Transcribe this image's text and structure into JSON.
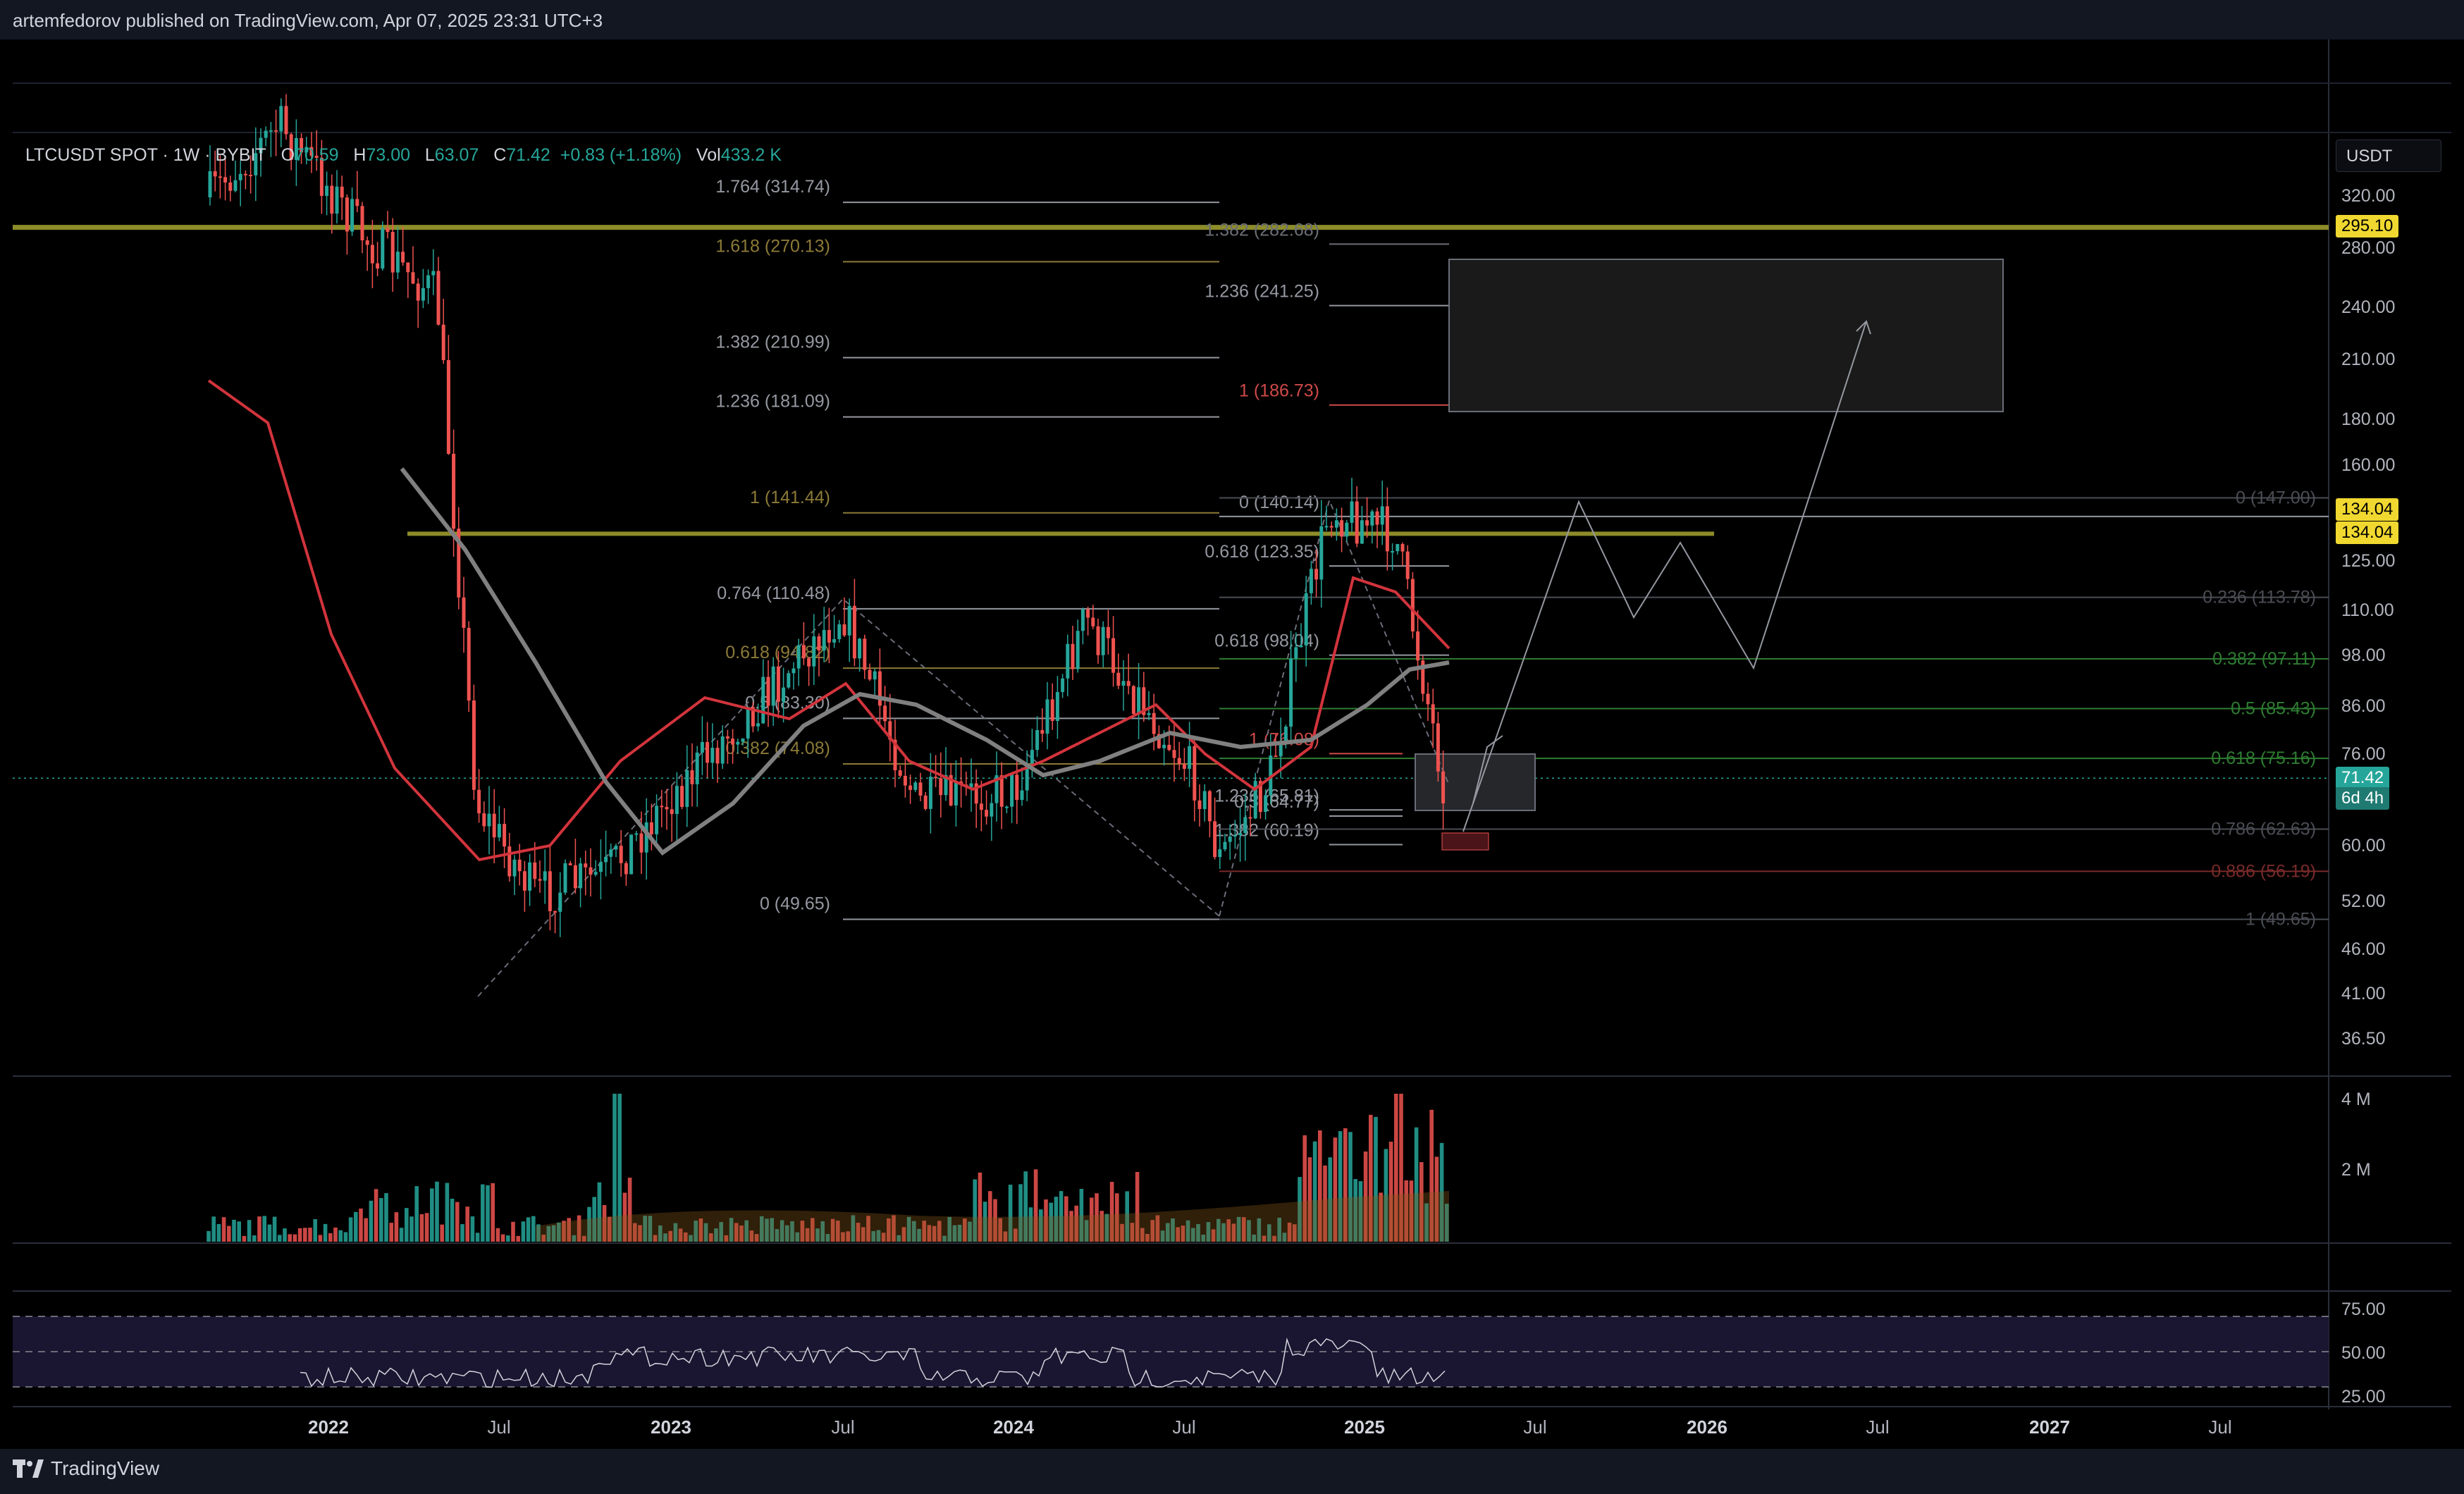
{
  "header": {
    "published": "artemfedorov published on TradingView.com, Apr 07, 2025 23:31 UTC+3"
  },
  "legend": {
    "symbol": "LTCUSDT SPOT · 1W · BYBIT",
    "o_label": "O",
    "o_value": "70.59",
    "h_label": "H",
    "h_value": "73.00",
    "l_label": "L",
    "l_value": "63.07",
    "c_label": "C",
    "c_value": "71.42",
    "change": "+0.83 (+1.18%)",
    "vol_label": "Vol",
    "vol_value": "433.2 K"
  },
  "currency": "USDT",
  "price_scale": [
    "320.00",
    "280.00",
    "240.00",
    "210.00",
    "180.00",
    "160.00",
    "125.00",
    "110.00",
    "98.00",
    "86.00",
    "76.00",
    "60.00",
    "52.00",
    "46.00",
    "41.00",
    "36.50"
  ],
  "price_badges": {
    "resistance_top": "295.10",
    "resistance_mid_1": "134.04",
    "resistance_mid_2": "134.04",
    "last_price": "71.42",
    "countdown": "6d 4h"
  },
  "volume_scale": [
    "4 M",
    "2 M"
  ],
  "rsi_scale": [
    "75.00",
    "50.00",
    "25.00"
  ],
  "time_axis": [
    {
      "label": "2022",
      "year": true
    },
    {
      "label": "Jul",
      "year": false
    },
    {
      "label": "2023",
      "year": true
    },
    {
      "label": "Jul",
      "year": false
    },
    {
      "label": "2024",
      "year": true
    },
    {
      "label": "Jul",
      "year": false
    },
    {
      "label": "2025",
      "year": true
    },
    {
      "label": "Jul",
      "year": false
    },
    {
      "label": "2026",
      "year": true
    },
    {
      "label": "Jul",
      "year": false
    },
    {
      "label": "2027",
      "year": true
    },
    {
      "label": "Jul",
      "year": false
    }
  ],
  "fib_left": [
    {
      "text": "1.764 (314.74)",
      "color": "#9598a1"
    },
    {
      "text": "1.618 (270.13)",
      "color": "#8c7a37"
    },
    {
      "text": "1.382 (210.99)",
      "color": "#9598a1"
    },
    {
      "text": "1.236 (181.09)",
      "color": "#9598a1"
    },
    {
      "text": "1 (141.44)",
      "color": "#8c7a37"
    },
    {
      "text": "0.764 (110.48)",
      "color": "#9598a1"
    },
    {
      "text": "0.618 (94.82)",
      "color": "#8c7a37"
    },
    {
      "text": "0.5 (83.30)",
      "color": "#9598a1"
    },
    {
      "text": "0.382 (74.08)",
      "color": "#8c7a37"
    },
    {
      "text": "0 (49.65)",
      "color": "#9598a1"
    }
  ],
  "fib_mid": [
    {
      "text": "1.382 (282.68)",
      "color": "#6b6e75"
    },
    {
      "text": "1.236 (241.25)",
      "color": "#9598a1"
    },
    {
      "text": "1 (186.73)",
      "color": "#d04a4a"
    },
    {
      "text": "0 (140.14)",
      "color": "#9598a1"
    },
    {
      "text": "0.618 (123.35)",
      "color": "#9598a1"
    },
    {
      "text": "0.618 (98.04)",
      "color": "#9598a1"
    },
    {
      "text": "1 (76.08)",
      "color": "#d04a4a"
    },
    {
      "text": "1.236 (65.81)",
      "color": "#9598a1"
    },
    {
      "text": "0.5 (64.77)",
      "color": "#9598a1"
    },
    {
      "text": "1.382 (60.19)",
      "color": "#9598a1"
    }
  ],
  "fib_right": [
    {
      "text": "0 (147.00)",
      "color": "#4a4d54"
    },
    {
      "text": "0.236 (113.78)",
      "color": "#4a4d54"
    },
    {
      "text": "0.382 (97.11)",
      "color": "#2e7d32"
    },
    {
      "text": "0.5 (85.43)",
      "color": "#2e7d32"
    },
    {
      "text": "0.618 (75.16)",
      "color": "#2e7d32"
    },
    {
      "text": "0.786 (62.63)",
      "color": "#4a4d54"
    },
    {
      "text": "0.886 (56.19)",
      "color": "#7a2a2a"
    },
    {
      "text": "1 (49.65)",
      "color": "#4a4d54"
    }
  ],
  "footer": {
    "brand": "TradingView"
  },
  "colors": {
    "up": "#26a69a",
    "down": "#ef5350",
    "resistance": "#8c8c2a",
    "ma_fast": "#d2343c",
    "ma_slow": "#808080"
  }
}
